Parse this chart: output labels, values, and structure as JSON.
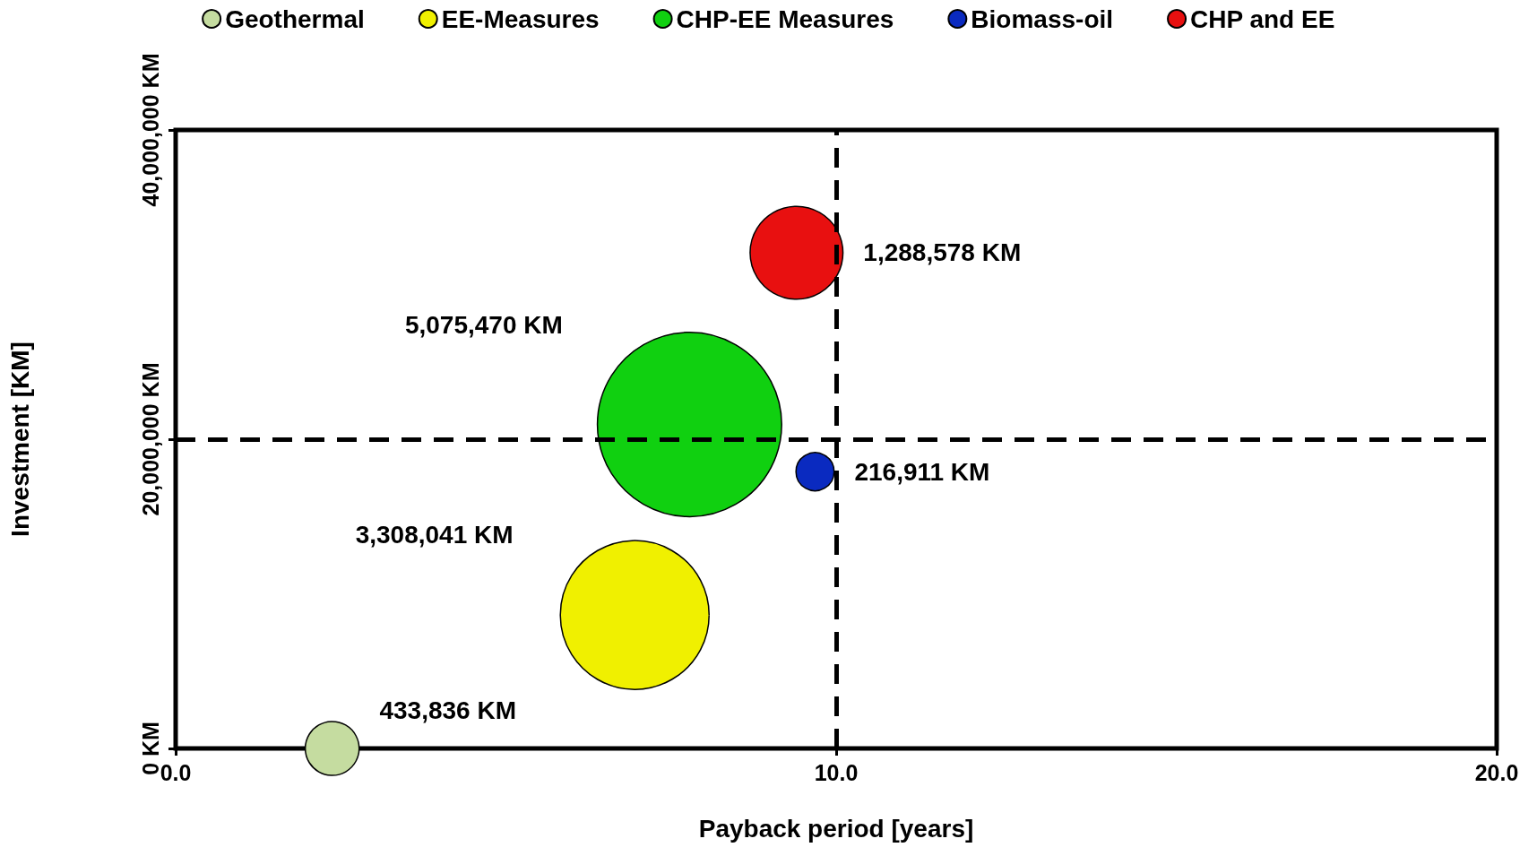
{
  "chart_data": {
    "type": "bubble",
    "xlabel": "Payback period [years]",
    "ylabel": "Investment [KM]",
    "xlim": [
      0,
      20
    ],
    "xticks": [
      {
        "value": 0,
        "label": "0.0"
      },
      {
        "value": 10,
        "label": "10.0"
      },
      {
        "value": 20,
        "label": "20.0"
      }
    ],
    "ylim": [
      0,
      40000000
    ],
    "yticks": [
      {
        "value": 0,
        "label": "0 KM"
      },
      {
        "value": 20000000,
        "label": "20,000,000 KM"
      },
      {
        "value": 40000000,
        "label": "40,000,000 KM"
      }
    ],
    "grid": false,
    "legend": "top",
    "series": [
      {
        "name": "Geothermal",
        "color": "#c5dca0",
        "x": [
          2.37
        ],
        "values": [
          0
        ],
        "sizes": [
          433836
        ],
        "value_labels": [
          "433,836 KM"
        ]
      },
      {
        "name": "EE-Measures",
        "color": "#f0f000",
        "x": [
          6.95
        ],
        "values": [
          8630000
        ],
        "sizes": [
          3308041
        ],
        "value_labels": [
          "3,308,041 KM"
        ]
      },
      {
        "name": "CHP-EE Measures",
        "color": "#10d010",
        "x": [
          7.78
        ],
        "values": [
          20950000
        ],
        "sizes": [
          5075470
        ],
        "value_labels": [
          "5,075,470 KM"
        ]
      },
      {
        "name": "Biomass-oil",
        "color": "#0a2ac0",
        "x": [
          9.68
        ],
        "values": [
          17900000
        ],
        "sizes": [
          216911
        ],
        "value_labels": [
          "216,911 KM"
        ]
      },
      {
        "name": "CHP and EE",
        "color": "#e81010",
        "x": [
          9.4
        ],
        "values": [
          32060000
        ],
        "sizes": [
          1288578
        ],
        "value_labels": [
          "1,288,578 KM"
        ]
      }
    ],
    "ref_lines": [
      {
        "axis": "x",
        "value": 10,
        "color": "#000000",
        "line_style": "dashed"
      },
      {
        "axis": "y",
        "value": 20000000,
        "color": "#000000",
        "line_style": "dashed"
      }
    ]
  }
}
